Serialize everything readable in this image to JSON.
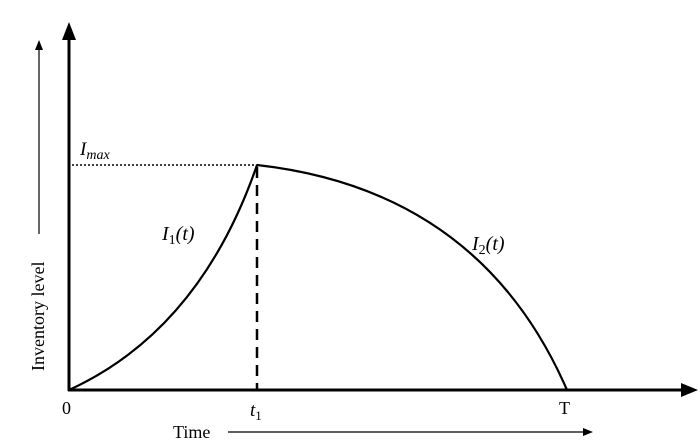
{
  "axes": {
    "y_label": "Inventory level",
    "x_label": "Time"
  },
  "labels": {
    "imax": {
      "main": "I",
      "sub": "max"
    },
    "curve1": {
      "main": "I",
      "sub": "1",
      "arg": "(t)"
    },
    "curve2": {
      "main": "I",
      "sub": "2",
      "arg": "(t)"
    },
    "origin": "0",
    "t1": {
      "main": "t",
      "sub": "1"
    },
    "end": "T"
  },
  "colors": {
    "ink": "#000000",
    "background": "#ffffff"
  }
}
